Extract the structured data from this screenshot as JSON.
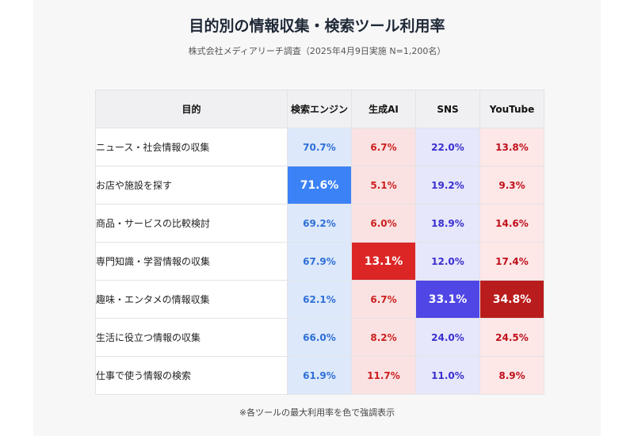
{
  "title": "目的別の情報収集・検索ツール利用率",
  "subtitle": "株式会社メディアリーチ調査（2025年4月9日実施 N=1,200名）",
  "footnote": "※各ツールの最大利用率を色で強調表示",
  "chart_data": {
    "type": "heatmap",
    "row_header": "目的",
    "columns": [
      "検索エンジン",
      "生成AI",
      "SNS",
      "YouTube"
    ],
    "rows": [
      "ニュース・社会情報の収集",
      "お店や施設を探す",
      "商品・サービスの比較検討",
      "専門知識・学習情報の収集",
      "趣味・エンタメの情報収集",
      "生活に役立つ情報の収集",
      "仕事で使う情報の検索"
    ],
    "unit": "%",
    "values": [
      [
        70.7,
        6.7,
        22.0,
        13.8
      ],
      [
        71.6,
        5.1,
        19.2,
        9.3
      ],
      [
        69.2,
        6.0,
        18.9,
        14.6
      ],
      [
        67.9,
        13.1,
        12.0,
        17.4
      ],
      [
        62.1,
        6.7,
        33.1,
        34.8
      ],
      [
        66.0,
        8.2,
        24.0,
        24.5
      ],
      [
        61.9,
        11.7,
        11.0,
        8.9
      ]
    ],
    "column_colors": {
      "検索エンジン": {
        "light": "#dde9fb",
        "text": "#2f6fd6",
        "highlight": "#3b82f6"
      },
      "生成AI": {
        "light": "#fbe2e2",
        "text": "#cc1f1f",
        "highlight": "#dc2626"
      },
      "SNS": {
        "light": "#e6e7fb",
        "text": "#3a2fd0",
        "highlight": "#4f46e5"
      },
      "YouTube": {
        "light": "#fde7e7",
        "text": "#c0101a",
        "highlight": "#b91c1c"
      }
    }
  }
}
